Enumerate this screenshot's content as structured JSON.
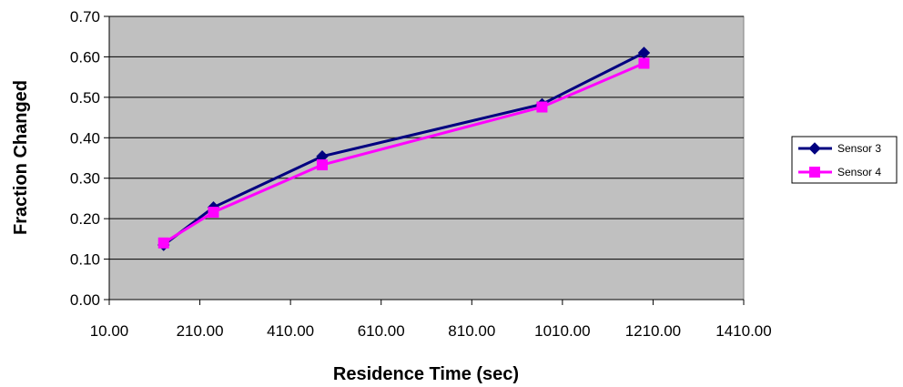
{
  "chart_data": {
    "type": "line",
    "title": "",
    "xlabel": "Residence Time (sec)",
    "ylabel": "Fraction Changed",
    "xlim": [
      10,
      1410
    ],
    "ylim": [
      0,
      0.7
    ],
    "x_ticks": [
      "10.00",
      "210.00",
      "410.00",
      "610.00",
      "810.00",
      "1010.00",
      "1210.00",
      "1410.00"
    ],
    "y_ticks": [
      "0.00",
      "0.10",
      "0.20",
      "0.30",
      "0.40",
      "0.50",
      "0.60",
      "0.70"
    ],
    "plot_background": "#c0c0c0",
    "grid": "horizontal",
    "legend_position": "right",
    "series": [
      {
        "name": "Sensor 3",
        "color": "#000080",
        "marker": "diamond",
        "x": [
          130,
          240,
          480,
          965,
          1190
        ],
        "y": [
          0.135,
          0.228,
          0.354,
          0.483,
          0.61
        ]
      },
      {
        "name": "Sensor 4",
        "color": "#ff00ff",
        "marker": "square",
        "x": [
          130,
          240,
          480,
          965,
          1190
        ],
        "y": [
          0.14,
          0.216,
          0.333,
          0.476,
          0.584
        ]
      }
    ]
  }
}
